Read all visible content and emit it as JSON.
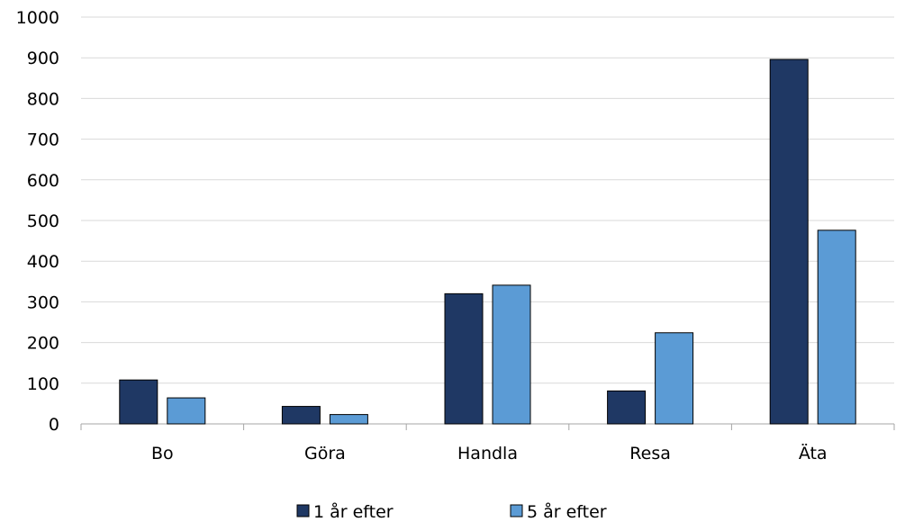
{
  "chart_data": {
    "type": "bar",
    "title": "",
    "xlabel": "",
    "ylabel": "",
    "categories": [
      "Bo",
      "Göra",
      "Handla",
      "Resa",
      "Äta"
    ],
    "series": [
      {
        "name": "1 år efter",
        "color": "#1f3864",
        "values": [
          108,
          43,
          320,
          81,
          896
        ]
      },
      {
        "name": "5 år efter",
        "color": "#5b9bd5",
        "values": [
          64,
          23,
          341,
          224,
          476
        ]
      }
    ],
    "ylim": [
      0,
      1000
    ],
    "yticks": [
      0,
      100,
      200,
      300,
      400,
      500,
      600,
      700,
      800,
      900,
      1000
    ],
    "grid": true,
    "legend_position": "bottom"
  }
}
